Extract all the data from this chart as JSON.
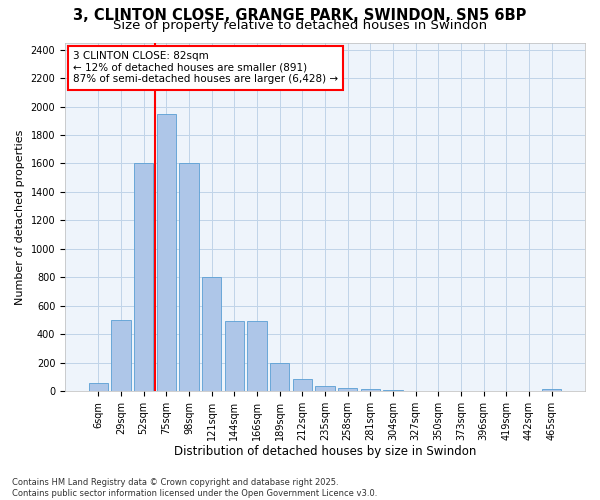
{
  "title": "3, CLINTON CLOSE, GRANGE PARK, SWINDON, SN5 6BP",
  "subtitle": "Size of property relative to detached houses in Swindon",
  "xlabel": "Distribution of detached houses by size in Swindon",
  "ylabel": "Number of detached properties",
  "categories": [
    "6sqm",
    "29sqm",
    "52sqm",
    "75sqm",
    "98sqm",
    "121sqm",
    "144sqm",
    "166sqm",
    "189sqm",
    "212sqm",
    "235sqm",
    "258sqm",
    "281sqm",
    "304sqm",
    "327sqm",
    "350sqm",
    "373sqm",
    "396sqm",
    "419sqm",
    "442sqm",
    "465sqm"
  ],
  "values": [
    55,
    500,
    1600,
    1950,
    1600,
    800,
    490,
    490,
    200,
    85,
    40,
    25,
    18,
    12,
    5,
    5,
    2,
    0,
    0,
    0,
    15
  ],
  "bar_color": "#aec6e8",
  "bar_edge_color": "#5a9fd4",
  "grid_color": "#c0d4e8",
  "background_color": "#eef4fb",
  "vline_color": "red",
  "vline_x": 2.5,
  "annotation_text": "3 CLINTON CLOSE: 82sqm\n← 12% of detached houses are smaller (891)\n87% of semi-detached houses are larger (6,428) →",
  "annotation_box_color": "white",
  "annotation_box_edge_color": "red",
  "footer_text": "Contains HM Land Registry data © Crown copyright and database right 2025.\nContains public sector information licensed under the Open Government Licence v3.0.",
  "ylim": [
    0,
    2450
  ],
  "yticks": [
    0,
    200,
    400,
    600,
    800,
    1000,
    1200,
    1400,
    1600,
    1800,
    2000,
    2200,
    2400
  ],
  "title_fontsize": 10.5,
  "subtitle_fontsize": 9.5,
  "xlabel_fontsize": 8.5,
  "ylabel_fontsize": 8,
  "tick_fontsize": 7,
  "annotation_fontsize": 7.5,
  "footer_fontsize": 6
}
